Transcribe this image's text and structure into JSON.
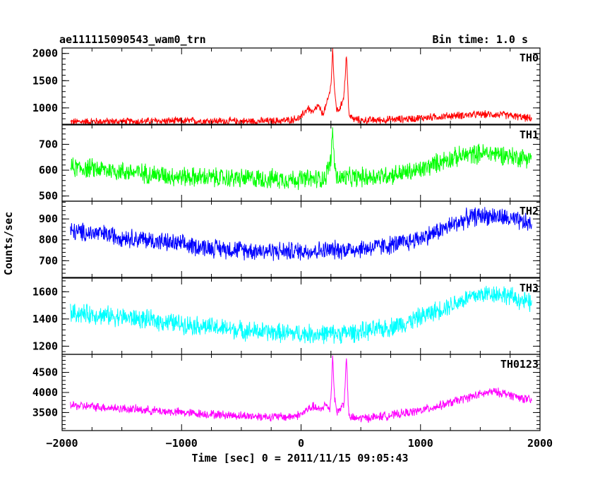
{
  "chart_data": {
    "type": "line",
    "title": "ae111115090543_wam0_trn",
    "bin_time": "Bin time: 1.0 s",
    "xlabel": "Time [sec] 0 = 2011/11/15 09:05:43",
    "ylabel": "Counts/sec",
    "xlim": [
      -2000,
      2000
    ],
    "x_ticks": [
      -2000,
      -1000,
      0,
      1000,
      2000
    ],
    "x_tick_labels": [
      "−2000",
      "−1000",
      "0",
      "1000",
      "2000"
    ],
    "grid": false,
    "panels": [
      {
        "name": "TH0",
        "color": "#ff0000",
        "ylim": [
          700,
          2100
        ],
        "y_ticks": [
          1000,
          1500,
          2000
        ],
        "y_tick_labels": [
          "1000",
          "1500",
          "2000"
        ],
        "x": [
          -1930,
          -1800,
          -1600,
          -1400,
          -1200,
          -1000,
          -800,
          -600,
          -400,
          -200,
          -100,
          0,
          20,
          60,
          100,
          140,
          180,
          220,
          250,
          265,
          280,
          300,
          330,
          360,
          380,
          400,
          430,
          500,
          700,
          900,
          1100,
          1300,
          1500,
          1600,
          1700,
          1800,
          1930
        ],
        "y": [
          740,
          750,
          750,
          750,
          760,
          760,
          760,
          755,
          755,
          760,
          775,
          820,
          900,
          1000,
          900,
          1050,
          880,
          1100,
          1400,
          2100,
          1300,
          950,
          1000,
          1250,
          2000,
          900,
          800,
          770,
          780,
          800,
          830,
          860,
          880,
          880,
          870,
          845,
          800
        ],
        "noise": 70
      },
      {
        "name": "TH1",
        "color": "#00ff00",
        "ylim": [
          480,
          775
        ],
        "y_ticks": [
          500,
          600,
          700
        ],
        "y_tick_labels": [
          "500",
          "600",
          "700"
        ],
        "x": [
          -1930,
          -1700,
          -1500,
          -1300,
          -1100,
          -900,
          -700,
          -500,
          -300,
          -100,
          100,
          200,
          250,
          265,
          280,
          300,
          400,
          600,
          800,
          1000,
          1100,
          1200,
          1300,
          1400,
          1500,
          1600,
          1700,
          1800,
          1930
        ],
        "y": [
          610,
          605,
          595,
          588,
          578,
          573,
          570,
          568,
          567,
          565,
          565,
          570,
          640,
          760,
          620,
          570,
          570,
          575,
          585,
          600,
          620,
          640,
          650,
          660,
          665,
          665,
          660,
          650,
          650
        ],
        "noise": 38
      },
      {
        "name": "TH2",
        "color": "#0000ff",
        "ylim": [
          620,
          985
        ],
        "y_ticks": [
          700,
          800,
          900
        ],
        "y_tick_labels": [
          "700",
          "800",
          "900"
        ],
        "x": [
          -1930,
          -1700,
          -1500,
          -1300,
          -1100,
          -900,
          -700,
          -500,
          -300,
          -100,
          100,
          300,
          500,
          700,
          900,
          1100,
          1300,
          1400,
          1500,
          1600,
          1700,
          1800,
          1930
        ],
        "y": [
          840,
          830,
          815,
          800,
          785,
          770,
          760,
          752,
          748,
          745,
          748,
          752,
          758,
          770,
          790,
          830,
          880,
          905,
          915,
          915,
          905,
          890,
          875
        ],
        "noise": 45
      },
      {
        "name": "TH3",
        "color": "#00ffff",
        "ylim": [
          1140,
          1700
        ],
        "y_ticks": [
          1200,
          1400,
          1600
        ],
        "y_tick_labels": [
          "1200",
          "1400",
          "1600"
        ],
        "x": [
          -1930,
          -1700,
          -1500,
          -1300,
          -1100,
          -900,
          -700,
          -500,
          -300,
          -100,
          100,
          300,
          500,
          700,
          900,
          1100,
          1300,
          1400,
          1500,
          1600,
          1700,
          1800,
          1930
        ],
        "y": [
          1445,
          1430,
          1415,
          1395,
          1375,
          1355,
          1335,
          1318,
          1305,
          1295,
          1290,
          1292,
          1305,
          1330,
          1380,
          1450,
          1520,
          1555,
          1580,
          1590,
          1580,
          1550,
          1510
        ],
        "noise": 70
      },
      {
        "name": "TH0123",
        "color": "#ff00ff",
        "ylim": [
          3050,
          4950
        ],
        "y_ticks": [
          3500,
          4000,
          4500
        ],
        "y_tick_labels": [
          "3500",
          "4000",
          "4500"
        ],
        "x": [
          -1930,
          -1700,
          -1500,
          -1300,
          -1100,
          -900,
          -700,
          -500,
          -300,
          -100,
          0,
          40,
          100,
          160,
          200,
          240,
          250,
          265,
          280,
          300,
          330,
          360,
          380,
          400,
          450,
          600,
          800,
          1000,
          1200,
          1400,
          1500,
          1600,
          1700,
          1800,
          1930
        ],
        "y": [
          3680,
          3640,
          3600,
          3560,
          3520,
          3480,
          3450,
          3420,
          3400,
          3390,
          3450,
          3550,
          3650,
          3550,
          3700,
          3600,
          3850,
          4950,
          3900,
          3500,
          3600,
          3750,
          4850,
          3400,
          3350,
          3380,
          3450,
          3550,
          3700,
          3880,
          3950,
          4020,
          3980,
          3900,
          3800
        ],
        "noise": 110
      }
    ]
  }
}
